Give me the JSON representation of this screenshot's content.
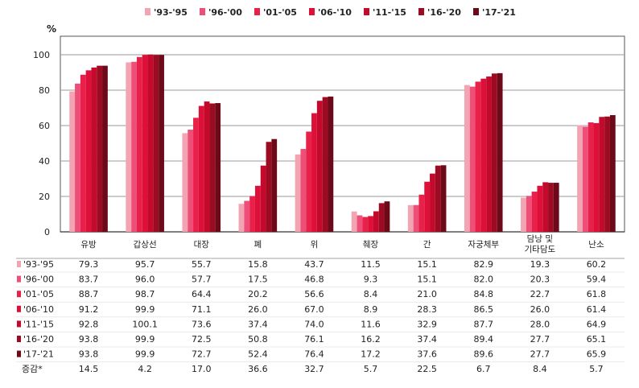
{
  "chart_data": {
    "type": "bar",
    "unit": "%",
    "ylim": [
      0,
      100
    ],
    "yticks": [
      0,
      20,
      40,
      60,
      80,
      100
    ],
    "grid": true,
    "legend_placement": "top",
    "categories": [
      "유방",
      "갑상선",
      "대장",
      "폐",
      "위",
      "췌장",
      "간",
      "자궁체부",
      "담낭 및\n기타담도",
      "난소"
    ],
    "series": [
      {
        "name": "'93-'95",
        "color": "#f3a4b3",
        "values": [
          79.3,
          95.7,
          55.7,
          15.8,
          43.7,
          11.5,
          15.1,
          82.9,
          19.3,
          60.2
        ]
      },
      {
        "name": "'96-'00",
        "color": "#ee4f78",
        "values": [
          83.7,
          96.0,
          57.7,
          17.5,
          46.8,
          9.3,
          15.1,
          82.0,
          20.3,
          59.4
        ]
      },
      {
        "name": "'01-'05",
        "color": "#e8204a",
        "values": [
          88.7,
          98.7,
          64.4,
          20.2,
          56.6,
          8.4,
          21.0,
          84.8,
          22.7,
          61.8
        ]
      },
      {
        "name": "'06-'10",
        "color": "#dc1038",
        "values": [
          91.2,
          99.9,
          71.1,
          26.0,
          67.0,
          8.9,
          28.3,
          86.5,
          26.0,
          61.4
        ]
      },
      {
        "name": "'11-'15",
        "color": "#c30a2c",
        "values": [
          92.8,
          100.1,
          73.6,
          37.4,
          74.0,
          11.6,
          32.9,
          87.7,
          28.0,
          64.9
        ]
      },
      {
        "name": "'16-'20",
        "color": "#9c0b22",
        "values": [
          93.8,
          99.9,
          72.5,
          50.8,
          76.1,
          16.2,
          37.4,
          89.4,
          27.7,
          65.1
        ]
      },
      {
        "name": "'17-'21",
        "color": "#6d0a19",
        "values": [
          93.8,
          99.9,
          72.7,
          52.4,
          76.4,
          17.2,
          37.6,
          89.6,
          27.7,
          65.9
        ]
      }
    ],
    "change_row": {
      "label": "증감*",
      "values": [
        14.5,
        4.2,
        17.0,
        36.6,
        32.7,
        5.7,
        22.5,
        6.7,
        8.4,
        5.7
      ]
    }
  }
}
